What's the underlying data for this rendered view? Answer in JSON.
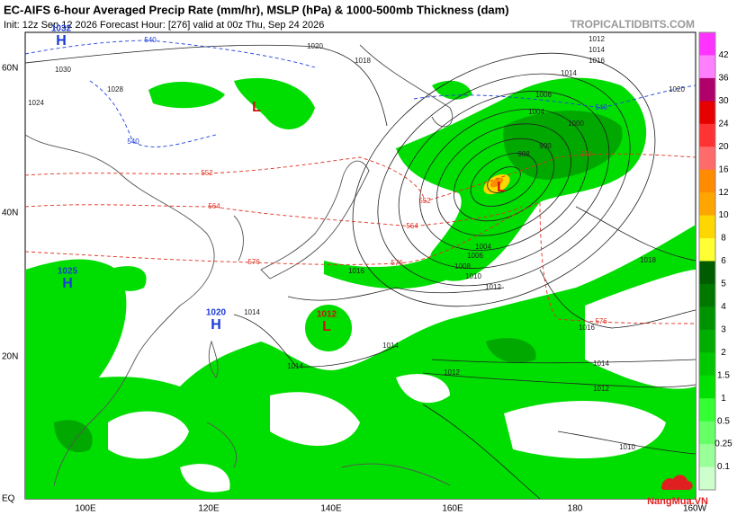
{
  "header": {
    "title": "EC-AIFS 6-hour Averaged Precip Rate (mm/hr), MSLP (hPa) & 1000-500mb Thickness (dam)",
    "subtitle": "Init: 12z Sep 12 2026   Forecast Hour: [276]   valid at 00z Thu, Sep 24 2026",
    "source": "TROPICALTIDBITS.COM"
  },
  "map": {
    "lat_labels": [
      "60N",
      "40N",
      "20N",
      "EQ"
    ],
    "lon_labels": [
      "100E",
      "120E",
      "140E",
      "160E",
      "180",
      "160W"
    ]
  },
  "colorbar": {
    "labels": [
      "42",
      "36",
      "30",
      "24",
      "20",
      "16",
      "12",
      "10",
      "8",
      "6",
      "5",
      "4",
      "3",
      "2",
      "1.5",
      "1",
      "0.5",
      "0.25",
      "0.1"
    ]
  },
  "pressure_centers": [
    {
      "letter": "H",
      "value": "1032"
    },
    {
      "letter": "H",
      "value": "1025"
    },
    {
      "letter": "H",
      "value": "1020"
    },
    {
      "letter": "L",
      "value": "1012"
    },
    {
      "letter": "L"
    },
    {
      "letter": "L"
    }
  ],
  "contour_labels": [
    "1030",
    "1020",
    "1018",
    "1012",
    "1014",
    "1016",
    "1014",
    "1008",
    "1004",
    "1000",
    "990",
    "988",
    "1004",
    "1006",
    "1008",
    "1010",
    "1012",
    "1016",
    "1014",
    "1014",
    "1014",
    "1012",
    "1014",
    "1012",
    "1018",
    "1016",
    "1010",
    "1020",
    "1024",
    "1028",
    "552",
    "564",
    "576",
    "576",
    "564",
    "552",
    "576",
    "564",
    "540",
    "540",
    "540"
  ],
  "watermark": "NangMua.VN"
}
